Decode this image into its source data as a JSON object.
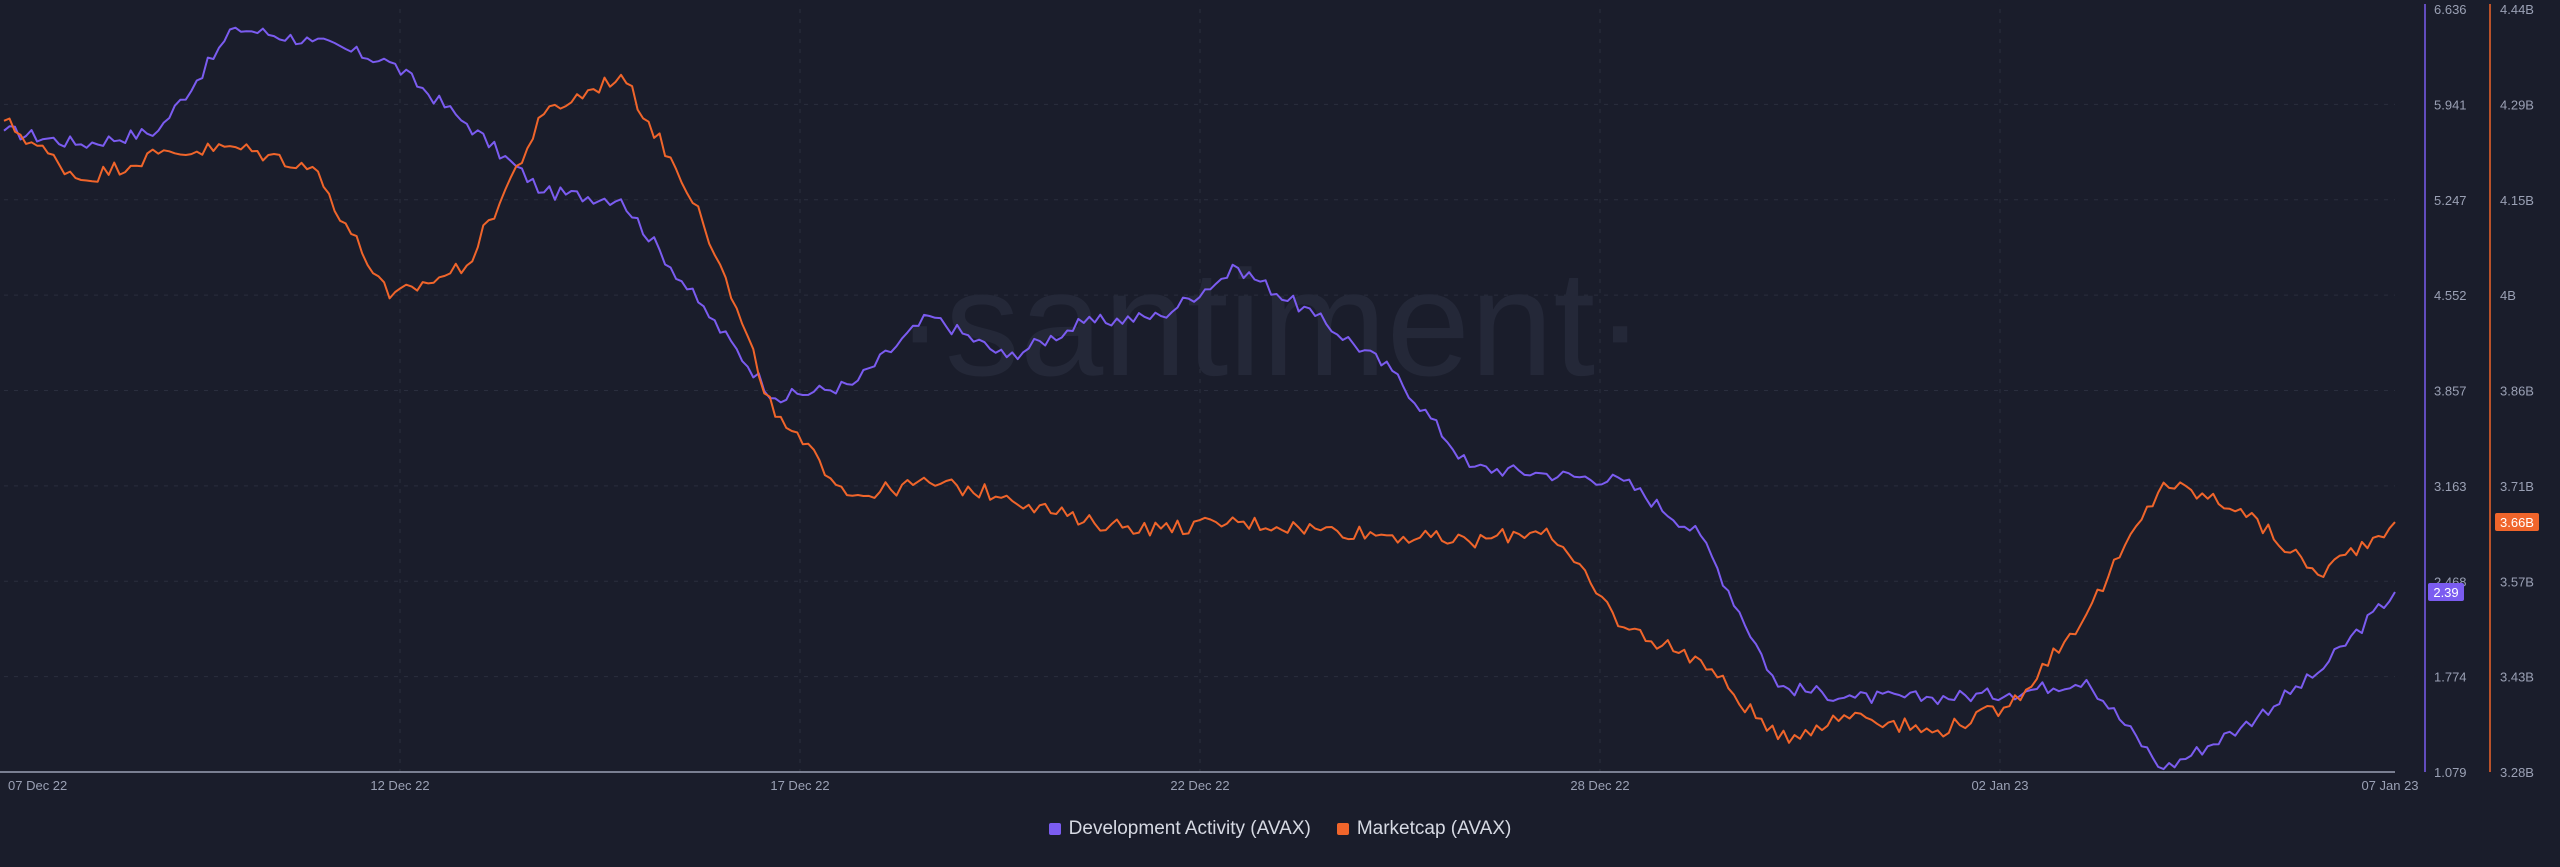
{
  "chart_data": {
    "type": "line",
    "watermark": "·santiment·",
    "x_ticks": [
      "07 Dec 22",
      "12 Dec 22",
      "17 Dec 22",
      "22 Dec 22",
      "28 Dec 22",
      "02 Jan 23",
      "07 Jan 23"
    ],
    "xlim": [
      "2022-12-07",
      "2023-01-07"
    ],
    "left_axis": {
      "series": "Development Activity (AVAX)",
      "ticks": [
        "6.636",
        "5.941",
        "5.247",
        "4.552",
        "3.857",
        "3.163",
        "2.468",
        "1.774",
        "1.079"
      ],
      "ylim": [
        1.079,
        6.636
      ],
      "current_label": "2.39",
      "color": "#7b5cf0"
    },
    "right_axis": {
      "series": "Marketcap (AVAX)",
      "ticks": [
        "4.44B",
        "4.29B",
        "4.15B",
        "4B",
        "3.86B",
        "3.71B",
        "3.57B",
        "3.43B",
        "3.28B"
      ],
      "ylim": [
        3.28,
        4.44
      ],
      "current_label": "3.66B",
      "color": "#f0652b"
    },
    "series": [
      {
        "name": "Development Activity (AVAX)",
        "axis": "left",
        "color": "#7b5cf0",
        "x": [
          "2022-12-07",
          "2022-12-08",
          "2022-12-09",
          "2022-12-10",
          "2022-12-11",
          "2022-12-12",
          "2022-12-13",
          "2022-12-14",
          "2022-12-15",
          "2022-12-16",
          "2022-12-17",
          "2022-12-18",
          "2022-12-19",
          "2022-12-20",
          "2022-12-21",
          "2022-12-22",
          "2022-12-23",
          "2022-12-24",
          "2022-12-25",
          "2022-12-26",
          "2022-12-27",
          "2022-12-28",
          "2022-12-29",
          "2022-12-30",
          "2022-12-31",
          "2023-01-01",
          "2023-01-02",
          "2023-01-03",
          "2023-01-04",
          "2023-01-05",
          "2023-01-06",
          "2023-01-07"
        ],
        "values": [
          5.75,
          5.65,
          5.75,
          6.5,
          6.4,
          6.25,
          5.8,
          5.3,
          5.25,
          4.5,
          3.8,
          3.9,
          4.4,
          4.1,
          4.35,
          4.4,
          4.75,
          4.4,
          4.0,
          3.3,
          3.25,
          3.2,
          2.8,
          1.7,
          1.62,
          1.62,
          1.65,
          1.75,
          1.1,
          1.4,
          1.8,
          2.39
        ]
      },
      {
        "name": "Marketcap (AVAX)",
        "axis": "right",
        "color": "#f0652b",
        "x": [
          "2022-12-07",
          "2022-12-08",
          "2022-12-09",
          "2022-12-10",
          "2022-12-11",
          "2022-12-12",
          "2022-12-13",
          "2022-12-14",
          "2022-12-15",
          "2022-12-16",
          "2022-12-17",
          "2022-12-18",
          "2022-12-19",
          "2022-12-20",
          "2022-12-21",
          "2022-12-22",
          "2022-12-23",
          "2022-12-24",
          "2022-12-25",
          "2022-12-26",
          "2022-12-27",
          "2022-12-28",
          "2022-12-29",
          "2022-12-30",
          "2022-12-31",
          "2023-01-01",
          "2023-01-02",
          "2023-01-03",
          "2023-01-04",
          "2023-01-05",
          "2023-01-06",
          "2023-01-07"
        ],
        "values": [
          4.27,
          4.18,
          4.22,
          4.23,
          4.2,
          4.0,
          4.05,
          4.28,
          4.34,
          4.14,
          3.82,
          3.7,
          3.72,
          3.7,
          3.66,
          3.65,
          3.66,
          3.65,
          3.64,
          3.63,
          3.65,
          3.5,
          3.45,
          3.33,
          3.37,
          3.34,
          3.38,
          3.52,
          3.72,
          3.68,
          3.58,
          3.66
        ]
      }
    ]
  },
  "legend": [
    {
      "label": "Development Activity (AVAX)",
      "color": "#7b5cf0"
    },
    {
      "label": "Marketcap (AVAX)",
      "color": "#f0652b"
    }
  ]
}
